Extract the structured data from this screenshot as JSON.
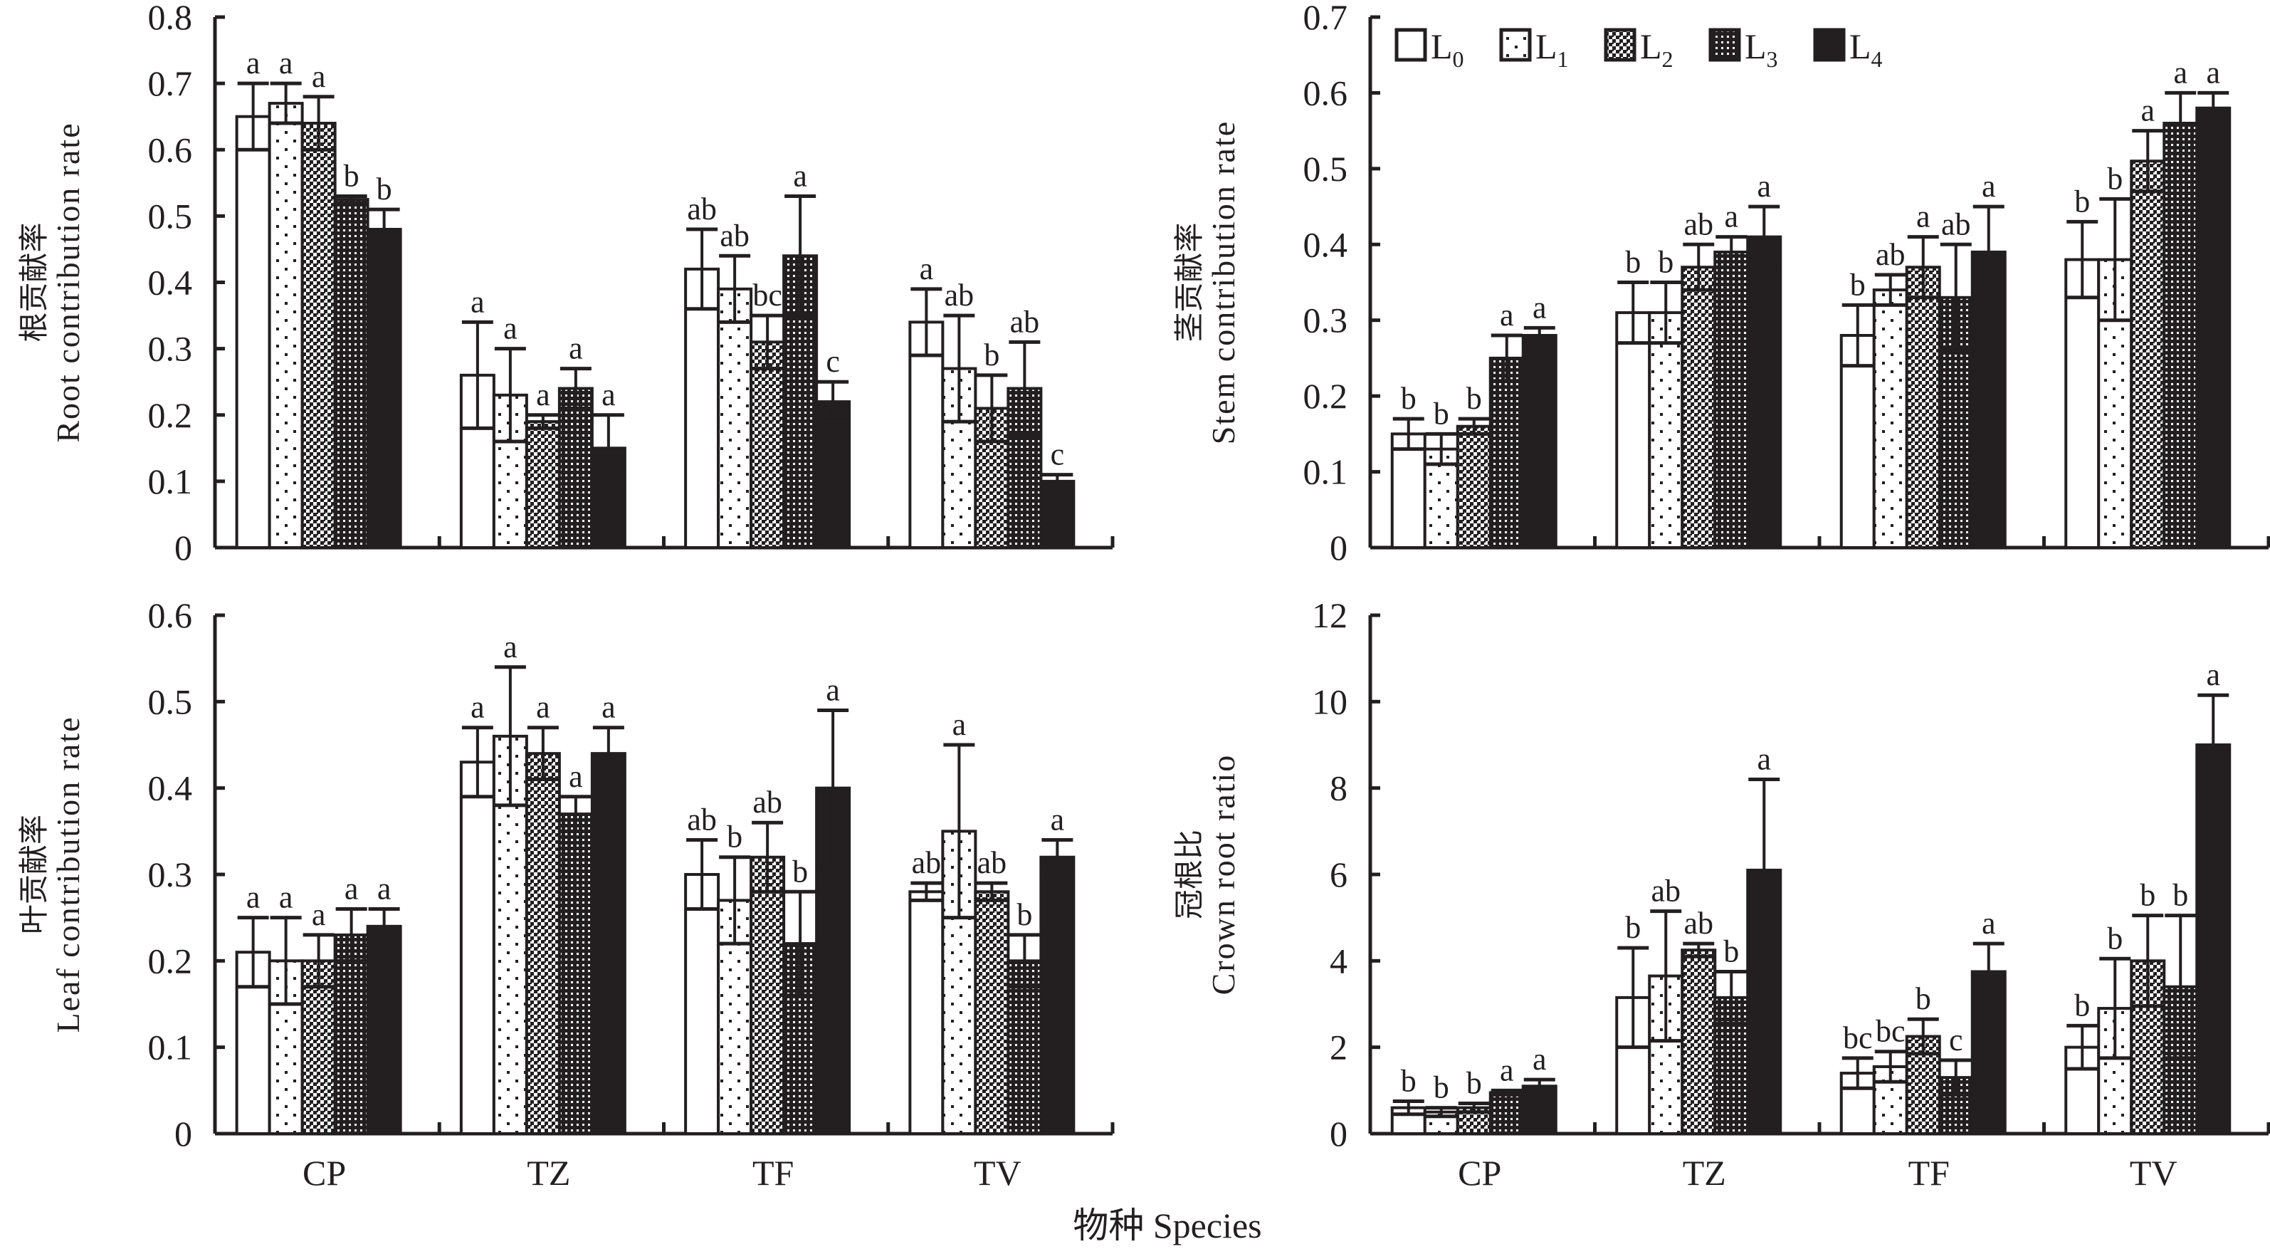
{
  "figure": {
    "xlabel": "物种 Species",
    "legend": {
      "placement": "top-right-panel",
      "entries": [
        {
          "label": "L",
          "sub": "0",
          "pattern": "empty"
        },
        {
          "label": "L",
          "sub": "1",
          "pattern": "sparse-dots"
        },
        {
          "label": "L",
          "sub": "2",
          "pattern": "checker-light"
        },
        {
          "label": "L",
          "sub": "3",
          "pattern": "checker-dense"
        },
        {
          "label": "L",
          "sub": "4",
          "pattern": "solid"
        }
      ]
    },
    "colors": {
      "ink": "#231f20",
      "background": "#ffffff"
    }
  },
  "chart_data": [
    {
      "id": "root",
      "type": "bar",
      "title": "",
      "ylabel_zh": "根贡献率",
      "ylabel_en": "Root contribution rate",
      "xlabel": "",
      "categories": [
        "CP",
        "TZ",
        "TF",
        "TV"
      ],
      "show_category_labels": false,
      "ylim": [
        0,
        0.8
      ],
      "yticks": [
        0,
        0.1,
        0.2,
        0.3,
        0.4,
        0.5,
        0.6,
        0.7,
        0.8
      ],
      "ytick_labels": [
        "0",
        "0.1",
        "0.2",
        "0.3",
        "0.4",
        "0.5",
        "0.6",
        "0.7",
        "0.8"
      ],
      "grid": false,
      "series": [
        {
          "name": "L0",
          "values": [
            0.65,
            0.26,
            0.42,
            0.34
          ],
          "errors": [
            0.05,
            0.08,
            0.06,
            0.05
          ],
          "letters": [
            "a",
            "a",
            "ab",
            "a"
          ]
        },
        {
          "name": "L1",
          "values": [
            0.67,
            0.23,
            0.39,
            0.27
          ],
          "errors": [
            0.03,
            0.07,
            0.05,
            0.08
          ],
          "letters": [
            "a",
            "a",
            "ab",
            "ab"
          ]
        },
        {
          "name": "L2",
          "values": [
            0.64,
            0.19,
            0.31,
            0.21
          ],
          "errors": [
            0.04,
            0.01,
            0.04,
            0.05
          ],
          "letters": [
            "a",
            "a",
            "bc",
            "b"
          ]
        },
        {
          "name": "L3",
          "values": [
            0.525,
            0.24,
            0.44,
            0.24
          ],
          "errors": [
            0.005,
            0.03,
            0.09,
            0.07
          ],
          "letters": [
            "b",
            "a",
            "a",
            "ab"
          ]
        },
        {
          "name": "L4",
          "values": [
            0.48,
            0.15,
            0.22,
            0.1
          ],
          "errors": [
            0.03,
            0.05,
            0.03,
            0.01
          ],
          "letters": [
            "b",
            "a",
            "c",
            "c"
          ]
        }
      ]
    },
    {
      "id": "stem",
      "type": "bar",
      "title": "",
      "ylabel_zh": "茎贡献率",
      "ylabel_en": "Stem contribution rate",
      "xlabel": "",
      "categories": [
        "CP",
        "TZ",
        "TF",
        "TV"
      ],
      "show_category_labels": false,
      "ylim": [
        0,
        0.7
      ],
      "yticks": [
        0,
        0.1,
        0.2,
        0.3,
        0.4,
        0.5,
        0.6,
        0.7
      ],
      "ytick_labels": [
        "0",
        "0.1",
        "0.2",
        "0.3",
        "0.4",
        "0.5",
        "0.6",
        "0.7"
      ],
      "grid": false,
      "series": [
        {
          "name": "L0",
          "values": [
            0.15,
            0.31,
            0.28,
            0.38
          ],
          "errors": [
            0.02,
            0.04,
            0.04,
            0.05
          ],
          "letters": [
            "b",
            "b",
            "b",
            "b"
          ]
        },
        {
          "name": "L1",
          "values": [
            0.13,
            0.31,
            0.34,
            0.38
          ],
          "errors": [
            0.02,
            0.04,
            0.02,
            0.08
          ],
          "letters": [
            "b",
            "b",
            "ab",
            "b"
          ]
        },
        {
          "name": "L2",
          "values": [
            0.16,
            0.37,
            0.37,
            0.51
          ],
          "errors": [
            0.01,
            0.03,
            0.04,
            0.04
          ],
          "letters": [
            "b",
            "ab",
            "a",
            "a"
          ]
        },
        {
          "name": "L3",
          "values": [
            0.25,
            0.39,
            0.33,
            0.56
          ],
          "errors": [
            0.03,
            0.02,
            0.07,
            0.04
          ],
          "letters": [
            "a",
            "a",
            "ab",
            "a"
          ]
        },
        {
          "name": "L4",
          "values": [
            0.28,
            0.41,
            0.39,
            0.58
          ],
          "errors": [
            0.01,
            0.04,
            0.06,
            0.02
          ],
          "letters": [
            "a",
            "a",
            "a",
            "a"
          ]
        }
      ]
    },
    {
      "id": "leaf",
      "type": "bar",
      "title": "",
      "ylabel_zh": "叶贡献率",
      "ylabel_en": "Leaf contribution rate",
      "xlabel": "",
      "categories": [
        "CP",
        "TZ",
        "TF",
        "TV"
      ],
      "show_category_labels": true,
      "ylim": [
        0,
        0.6
      ],
      "yticks": [
        0,
        0.1,
        0.2,
        0.3,
        0.4,
        0.5,
        0.6
      ],
      "ytick_labels": [
        "0",
        "0.1",
        "0.2",
        "0.3",
        "0.4",
        "0.5",
        "0.6"
      ],
      "grid": false,
      "series": [
        {
          "name": "L0",
          "values": [
            0.21,
            0.43,
            0.3,
            0.28
          ],
          "errors": [
            0.04,
            0.04,
            0.04,
            0.01
          ],
          "letters": [
            "a",
            "a",
            "ab",
            "ab"
          ]
        },
        {
          "name": "L1",
          "values": [
            0.2,
            0.46,
            0.27,
            0.35
          ],
          "errors": [
            0.05,
            0.08,
            0.05,
            0.1
          ],
          "letters": [
            "a",
            "a",
            "b",
            "a"
          ]
        },
        {
          "name": "L2",
          "values": [
            0.2,
            0.44,
            0.32,
            0.28
          ],
          "errors": [
            0.03,
            0.03,
            0.04,
            0.01
          ],
          "letters": [
            "a",
            "a",
            "ab",
            "ab"
          ]
        },
        {
          "name": "L3",
          "values": [
            0.23,
            0.37,
            0.22,
            0.2
          ],
          "errors": [
            0.03,
            0.02,
            0.06,
            0.03
          ],
          "letters": [
            "a",
            "a",
            "b",
            "b"
          ]
        },
        {
          "name": "L4",
          "values": [
            0.24,
            0.44,
            0.4,
            0.32
          ],
          "errors": [
            0.02,
            0.03,
            0.09,
            0.02
          ],
          "letters": [
            "a",
            "a",
            "a",
            "a"
          ]
        }
      ]
    },
    {
      "id": "crown",
      "type": "bar",
      "title": "",
      "ylabel_zh": "冠根比",
      "ylabel_en": "Crown root ratio",
      "xlabel": "",
      "categories": [
        "CP",
        "TZ",
        "TF",
        "TV"
      ],
      "show_category_labels": true,
      "ylim": [
        0,
        12
      ],
      "yticks": [
        0,
        2,
        4,
        6,
        8,
        10,
        12
      ],
      "ytick_labels": [
        "0",
        "2",
        "4",
        "6",
        "8",
        "10",
        "12"
      ],
      "grid": false,
      "series": [
        {
          "name": "L0",
          "values": [
            0.6,
            3.15,
            1.4,
            2.0
          ],
          "errors": [
            0.15,
            1.15,
            0.35,
            0.5
          ],
          "letters": [
            "b",
            "b",
            "bc",
            "b"
          ]
        },
        {
          "name": "L1",
          "values": [
            0.5,
            3.65,
            1.55,
            2.9
          ],
          "errors": [
            0.1,
            1.5,
            0.35,
            1.15
          ],
          "letters": [
            "b",
            "ab",
            "bc",
            "b"
          ]
        },
        {
          "name": "L2",
          "values": [
            0.6,
            4.25,
            2.25,
            4.0
          ],
          "errors": [
            0.1,
            0.15,
            0.4,
            1.05
          ],
          "letters": [
            "b",
            "ab",
            "b",
            "b"
          ]
        },
        {
          "name": "L3",
          "values": [
            0.95,
            3.15,
            1.3,
            3.4
          ],
          "errors": [
            0.05,
            0.6,
            0.4,
            1.65
          ],
          "letters": [
            "a",
            "b",
            "c",
            "b"
          ]
        },
        {
          "name": "L4",
          "values": [
            1.1,
            6.1,
            3.75,
            9.0
          ],
          "errors": [
            0.15,
            2.1,
            0.65,
            1.15
          ],
          "letters": [
            "a",
            "a",
            "a",
            "a"
          ]
        }
      ]
    }
  ]
}
